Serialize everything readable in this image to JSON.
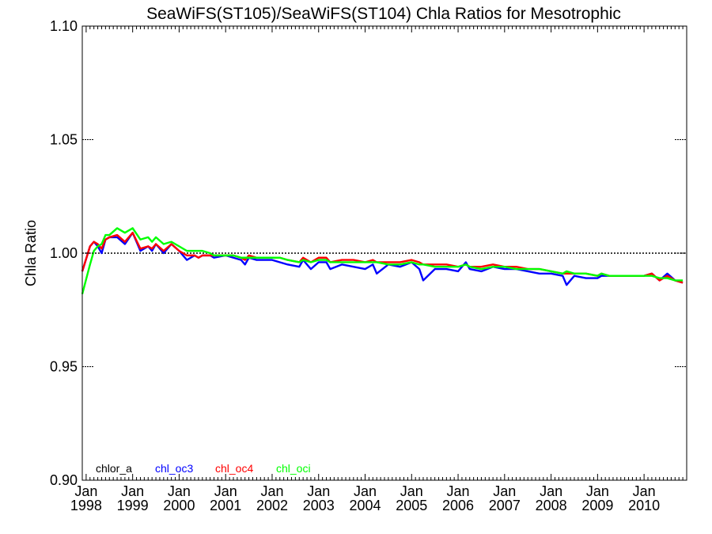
{
  "colors": {
    "chlor_a": "#000000",
    "chl_oc3": "#0000ff",
    "chl_oc4": "#ff0000",
    "chl_oci": "#00ff00"
  },
  "chart_data": {
    "type": "line",
    "title": "SeaWiFS(ST105)/SeaWiFS(ST104)  Chla Ratios for Mesotrophic",
    "xlabel": "",
    "ylabel": "Chla Ratio",
    "xlim": [
      "1997-12",
      "2010-12"
    ],
    "ylim": [
      0.9,
      1.1
    ],
    "grid": false,
    "legend": "bottom-left",
    "reference_line": 1.0,
    "yticks": [
      "0.90",
      "0.95",
      "1.00",
      "1.05",
      "1.10"
    ],
    "xticks": [
      {
        "month": "Jan",
        "year": "1998",
        "date": "1998-01"
      },
      {
        "month": "Jan",
        "year": "1999",
        "date": "1999-01"
      },
      {
        "month": "Jan",
        "year": "2000",
        "date": "2000-01"
      },
      {
        "month": "Jan",
        "year": "2001",
        "date": "2001-01"
      },
      {
        "month": "Jan",
        "year": "2002",
        "date": "2002-01"
      },
      {
        "month": "Jan",
        "year": "2003",
        "date": "2003-01"
      },
      {
        "month": "Jan",
        "year": "2004",
        "date": "2004-01"
      },
      {
        "month": "Jan",
        "year": "2005",
        "date": "2005-01"
      },
      {
        "month": "Jan",
        "year": "2006",
        "date": "2006-01"
      },
      {
        "month": "Jan",
        "year": "2007",
        "date": "2007-01"
      },
      {
        "month": "Jan",
        "year": "2008",
        "date": "2008-01"
      },
      {
        "month": "Jan",
        "year": "2009",
        "date": "2009-01"
      },
      {
        "month": "Jan",
        "year": "2010",
        "date": "2010-01"
      }
    ],
    "series": [
      {
        "name": "chl_oc3",
        "x": [
          "1997-12",
          "1998-02",
          "1998-03",
          "1998-04",
          "1998-05",
          "1998-06",
          "1998-07",
          "1998-09",
          "1998-11",
          "1999-01",
          "1999-03",
          "1999-05",
          "1999-06",
          "1999-07",
          "1999-09",
          "1999-11",
          "2000-01",
          "2000-03",
          "2000-05",
          "2000-06",
          "2000-07",
          "2000-09",
          "2000-10",
          "2001-01",
          "2001-03",
          "2001-05",
          "2001-06",
          "2001-07",
          "2001-09",
          "2002-01",
          "2002-03",
          "2002-05",
          "2002-08",
          "2002-09",
          "2002-11",
          "2003-01",
          "2003-03",
          "2003-04",
          "2003-07",
          "2003-10",
          "2004-01",
          "2004-03",
          "2004-04",
          "2004-07",
          "2004-10",
          "2005-01",
          "2005-03",
          "2005-04",
          "2005-07",
          "2005-10",
          "2006-01",
          "2006-03",
          "2006-04",
          "2006-07",
          "2006-10",
          "2007-01",
          "2007-04",
          "2007-07",
          "2007-10",
          "2008-01",
          "2008-04",
          "2008-05",
          "2008-07",
          "2008-10",
          "2009-01",
          "2009-02",
          "2009-04",
          "2009-07",
          "2009-10",
          "2010-01",
          "2010-03",
          "2010-05",
          "2010-07",
          "2010-09",
          "2010-11"
        ],
        "values": [
          0.992,
          1.003,
          1.005,
          1.003,
          1.0,
          1.006,
          1.007,
          1.007,
          1.004,
          1.009,
          1.001,
          1.003,
          1.001,
          1.004,
          1.0,
          1.004,
          1.001,
          0.997,
          0.999,
          0.998,
          0.999,
          0.999,
          0.998,
          0.999,
          0.998,
          0.997,
          0.995,
          0.998,
          0.997,
          0.997,
          0.996,
          0.995,
          0.994,
          0.997,
          0.993,
          0.996,
          0.996,
          0.993,
          0.995,
          0.994,
          0.993,
          0.995,
          0.991,
          0.995,
          0.994,
          0.996,
          0.993,
          0.988,
          0.993,
          0.993,
          0.992,
          0.996,
          0.993,
          0.992,
          0.994,
          0.993,
          0.993,
          0.992,
          0.991,
          0.991,
          0.99,
          0.986,
          0.99,
          0.989,
          0.989,
          0.99,
          0.99,
          0.99,
          0.99,
          0.99,
          0.991,
          0.988,
          0.991,
          0.988,
          0.987
        ]
      },
      {
        "name": "chl_oc4",
        "x": [
          "1997-12",
          "1998-02",
          "1998-03",
          "1998-04",
          "1998-05",
          "1998-06",
          "1998-07",
          "1998-09",
          "1998-11",
          "1999-01",
          "1999-03",
          "1999-05",
          "1999-06",
          "1999-07",
          "1999-09",
          "1999-11",
          "2000-01",
          "2000-03",
          "2000-05",
          "2000-06",
          "2000-07",
          "2000-09",
          "2000-10",
          "2001-01",
          "2001-03",
          "2001-05",
          "2001-06",
          "2001-07",
          "2001-09",
          "2002-01",
          "2002-03",
          "2002-05",
          "2002-08",
          "2002-09",
          "2002-11",
          "2003-01",
          "2003-03",
          "2003-04",
          "2003-07",
          "2003-10",
          "2004-01",
          "2004-03",
          "2004-04",
          "2004-07",
          "2004-10",
          "2005-01",
          "2005-03",
          "2005-04",
          "2005-07",
          "2005-10",
          "2006-01",
          "2006-03",
          "2006-04",
          "2006-07",
          "2006-10",
          "2007-01",
          "2007-04",
          "2007-07",
          "2007-10",
          "2008-01",
          "2008-04",
          "2008-05",
          "2008-07",
          "2008-10",
          "2009-01",
          "2009-02",
          "2009-04",
          "2009-07",
          "2009-10",
          "2010-01",
          "2010-03",
          "2010-05",
          "2010-07",
          "2010-09",
          "2010-11"
        ],
        "values": [
          0.992,
          1.003,
          1.005,
          1.004,
          1.002,
          1.006,
          1.007,
          1.008,
          1.005,
          1.009,
          1.002,
          1.003,
          1.002,
          1.004,
          1.001,
          1.004,
          1.001,
          0.999,
          0.999,
          0.998,
          0.999,
          0.999,
          0.999,
          0.999,
          0.999,
          0.998,
          0.997,
          0.999,
          0.998,
          0.998,
          0.998,
          0.997,
          0.996,
          0.998,
          0.996,
          0.998,
          0.998,
          0.996,
          0.997,
          0.997,
          0.996,
          0.997,
          0.996,
          0.996,
          0.996,
          0.997,
          0.996,
          0.995,
          0.995,
          0.995,
          0.994,
          0.995,
          0.994,
          0.994,
          0.995,
          0.994,
          0.994,
          0.993,
          0.993,
          0.992,
          0.991,
          0.991,
          0.991,
          0.991,
          0.99,
          0.991,
          0.99,
          0.99,
          0.99,
          0.99,
          0.991,
          0.988,
          0.99,
          0.988,
          0.987
        ]
      },
      {
        "name": "chl_oci",
        "x": [
          "1997-12",
          "1998-02",
          "1998-03",
          "1998-04",
          "1998-05",
          "1998-06",
          "1998-07",
          "1998-09",
          "1998-11",
          "1999-01",
          "1999-03",
          "1999-05",
          "1999-06",
          "1999-07",
          "1999-09",
          "1999-11",
          "2000-01",
          "2000-03",
          "2000-05",
          "2000-06",
          "2000-07",
          "2000-09",
          "2000-10",
          "2001-01",
          "2001-03",
          "2001-05",
          "2001-06",
          "2001-07",
          "2001-09",
          "2002-01",
          "2002-03",
          "2002-05",
          "2002-08",
          "2002-09",
          "2002-11",
          "2003-01",
          "2003-03",
          "2003-04",
          "2003-07",
          "2003-10",
          "2004-01",
          "2004-03",
          "2004-04",
          "2004-07",
          "2004-10",
          "2005-01",
          "2005-03",
          "2005-04",
          "2005-07",
          "2005-10",
          "2006-01",
          "2006-03",
          "2006-04",
          "2006-07",
          "2006-10",
          "2007-01",
          "2007-04",
          "2007-07",
          "2007-10",
          "2008-01",
          "2008-04",
          "2008-05",
          "2008-07",
          "2008-10",
          "2009-01",
          "2009-02",
          "2009-04",
          "2009-07",
          "2009-10",
          "2010-01",
          "2010-03",
          "2010-05",
          "2010-07",
          "2010-09",
          "2010-11"
        ],
        "values": [
          0.982,
          0.995,
          1.001,
          1.003,
          1.004,
          1.008,
          1.008,
          1.011,
          1.009,
          1.011,
          1.006,
          1.007,
          1.005,
          1.007,
          1.004,
          1.005,
          1.003,
          1.001,
          1.001,
          1.001,
          1.001,
          1.0,
          0.999,
          0.999,
          0.999,
          0.998,
          0.998,
          0.998,
          0.998,
          0.998,
          0.998,
          0.997,
          0.996,
          0.997,
          0.996,
          0.997,
          0.997,
          0.996,
          0.996,
          0.996,
          0.996,
          0.996,
          0.996,
          0.995,
          0.995,
          0.996,
          0.995,
          0.995,
          0.994,
          0.994,
          0.994,
          0.995,
          0.994,
          0.993,
          0.994,
          0.994,
          0.993,
          0.993,
          0.993,
          0.992,
          0.991,
          0.992,
          0.991,
          0.991,
          0.99,
          0.991,
          0.99,
          0.99,
          0.99,
          0.99,
          0.99,
          0.989,
          0.989,
          0.988,
          0.988
        ]
      }
    ],
    "legend_entries": [
      {
        "key": "chlor_a",
        "label": "chlor_a"
      },
      {
        "key": "chl_oc3",
        "label": "chl_oc3"
      },
      {
        "key": "chl_oc4",
        "label": "chl_oc4"
      },
      {
        "key": "chl_oci",
        "label": "chl_oci"
      }
    ]
  }
}
